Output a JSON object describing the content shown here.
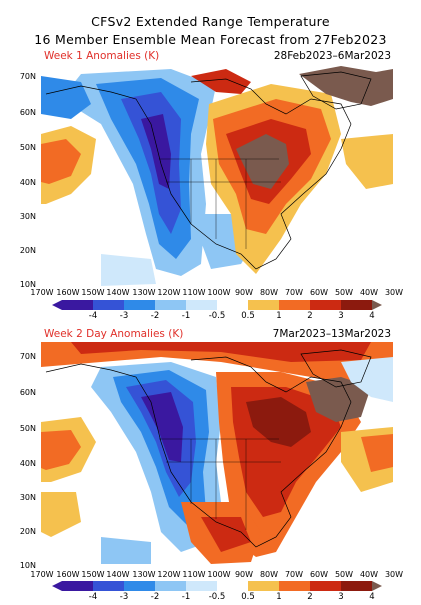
{
  "title_line1": "CFSv2 Extended Range Temperature",
  "title_line2": "16 Member Ensemble Mean Forecast from 27Feb2023",
  "panels": [
    {
      "label": "Week 1 Anomalies (K)",
      "dates": "28Feb2023–6Mar2023"
    },
    {
      "label": "Week 2 Day Anomalies (K)",
      "dates": "7Mar2023–13Mar2023"
    }
  ],
  "lat_labels": [
    "70N",
    "60N",
    "50N",
    "40N",
    "30N",
    "20N",
    "10N"
  ],
  "lon_labels": [
    "170W",
    "160W",
    "150W",
    "140W",
    "130W",
    "120W",
    "110W",
    "100W",
    "90W",
    "80W",
    "70W",
    "60W",
    "50W",
    "40W",
    "30W"
  ],
  "colorbar": {
    "labels": [
      "-4",
      "-3",
      "-2",
      "-1",
      "-0.5",
      "0.5",
      "1",
      "2",
      "3",
      "4"
    ],
    "colors": [
      "#3a18a0",
      "#3553d6",
      "#2f8ae8",
      "#8ec6f4",
      "#cfe8fb",
      "#ffffff",
      "#f5c14e",
      "#f26b24",
      "#cc2a12",
      "#8c1a0e",
      "#7a5a4e"
    ]
  }
}
